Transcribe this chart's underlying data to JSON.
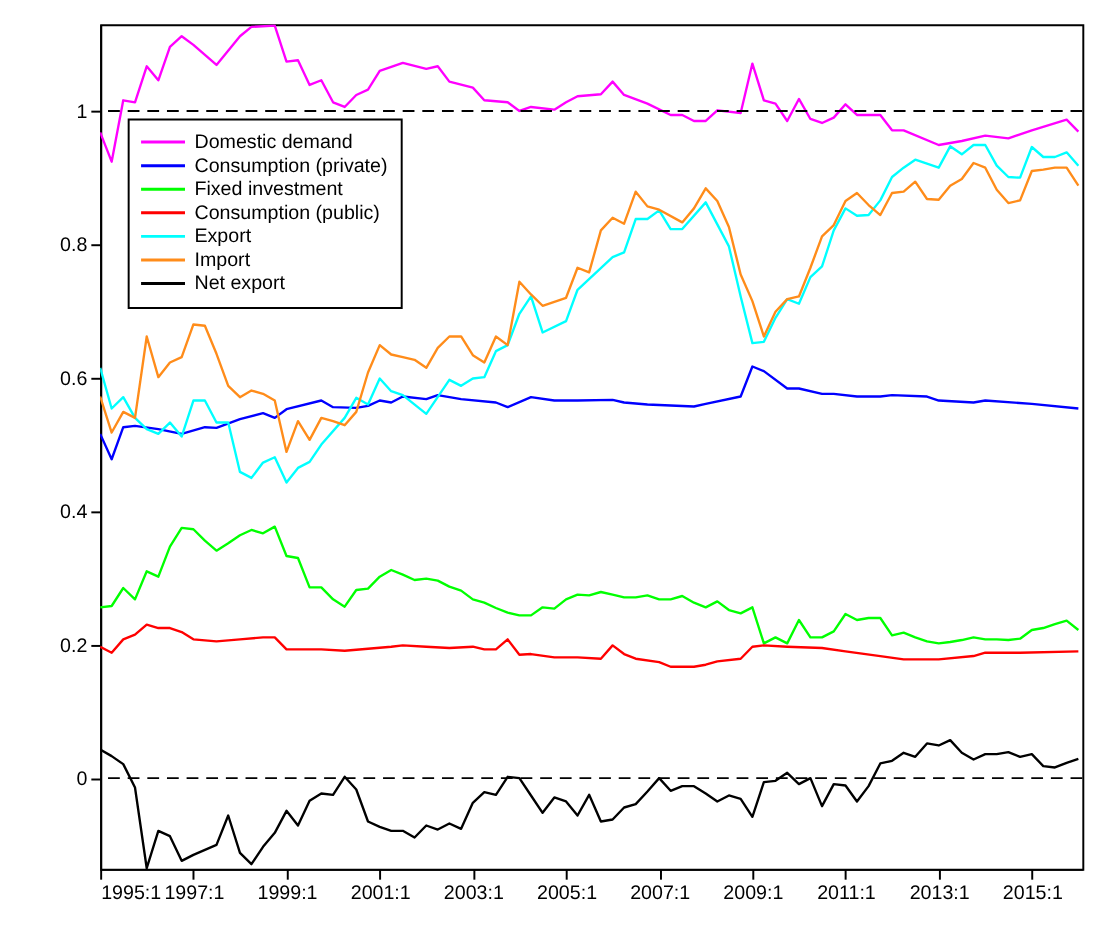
{
  "chart_data": {
    "type": "line",
    "xlim": [
      "1995-01",
      "2016-02"
    ],
    "ylim": [
      -0.136,
      1.13
    ],
    "xticks": [
      {
        "value": "1995-01",
        "label": "1995:1"
      },
      {
        "value": "1997-01",
        "label": "1997:1"
      },
      {
        "value": "1999-01",
        "label": "1999:1"
      },
      {
        "value": "2001-01",
        "label": "2001:1"
      },
      {
        "value": "2003-01",
        "label": "2003:1"
      },
      {
        "value": "2005-01",
        "label": "2005:1"
      },
      {
        "value": "2007-01",
        "label": "2007:1"
      },
      {
        "value": "2009-01",
        "label": "2009:1"
      },
      {
        "value": "2011-01",
        "label": "2011:1"
      },
      {
        "value": "2013-01",
        "label": "2013:1"
      },
      {
        "value": "2015-01",
        "label": "2015:1"
      }
    ],
    "yticks": [
      0,
      0.2,
      0.4,
      0.6,
      0.8,
      1
    ],
    "grid": false,
    "legend": "top left",
    "line_style": "solid",
    "ref_lines": [
      {
        "axis": "y",
        "value": 1,
        "color": "#000000",
        "line_style": "dashed"
      },
      {
        "axis": "y",
        "value": 0,
        "color": "#000000",
        "line_style": "dashed"
      }
    ],
    "series": [
      {
        "name": "Domestic demand",
        "color": "#ff00ff",
        "x": [
          "1995-01",
          "1995-04",
          "1995-07",
          "1995-10",
          "1996-01",
          "1996-04",
          "1996-07",
          "1996-10",
          "1997-01",
          "1997-07",
          "1998-01",
          "1998-04",
          "1998-10",
          "1999-01",
          "1999-04",
          "1999-07",
          "1999-10",
          "2000-01",
          "2000-04",
          "2000-07",
          "2000-10",
          "2001-01",
          "2001-07",
          "2002-01",
          "2002-04",
          "2002-07",
          "2003-01",
          "2003-04",
          "2003-10",
          "2004-01",
          "2004-04",
          "2004-10",
          "2005-01",
          "2005-04",
          "2005-10",
          "2006-01",
          "2006-04",
          "2006-10",
          "2007-04",
          "2007-07",
          "2007-10",
          "2008-01",
          "2008-04",
          "2008-10",
          "2009-01",
          "2009-04",
          "2009-07",
          "2009-10",
          "2010-01",
          "2010-04",
          "2010-07",
          "2010-10",
          "2011-01",
          "2011-04",
          "2011-10",
          "2012-01",
          "2012-04",
          "2013-01",
          "2013-07",
          "2014-01",
          "2014-07",
          "2015-01",
          "2015-10",
          "2016-01"
        ],
        "values": [
          0.968,
          0.924,
          1.016,
          1.013,
          1.067,
          1.046,
          1.096,
          1.112,
          1.099,
          1.069,
          1.112,
          1.126,
          1.128,
          1.074,
          1.076,
          1.039,
          1.046,
          1.013,
          1.006,
          1.024,
          1.032,
          1.06,
          1.072,
          1.063,
          1.067,
          1.044,
          1.035,
          1.016,
          1.013,
          1.0,
          1.006,
          1.002,
          1.013,
          1.022,
          1.025,
          1.044,
          1.024,
          1.011,
          0.994,
          0.994,
          0.985,
          0.985,
          1.001,
          0.997,
          1.071,
          1.016,
          1.011,
          0.985,
          1.018,
          0.988,
          0.982,
          0.99,
          1.01,
          0.994,
          0.994,
          0.971,
          0.971,
          0.949,
          0.955,
          0.963,
          0.959,
          0.971,
          0.987,
          0.969
        ]
      },
      {
        "name": "Consumption (private)",
        "color": "#0000ff",
        "x": [
          "1995-01",
          "1995-04",
          "1995-07",
          "1995-10",
          "1996-04",
          "1996-10",
          "1997-04",
          "1997-07",
          "1998-01",
          "1998-07",
          "1998-10",
          "1999-01",
          "1999-10",
          "2000-01",
          "2000-07",
          "2000-10",
          "2001-01",
          "2001-04",
          "2001-07",
          "2002-01",
          "2002-04",
          "2002-10",
          "2003-07",
          "2003-10",
          "2004-04",
          "2004-10",
          "2005-04",
          "2006-01",
          "2006-04",
          "2006-10",
          "2007-10",
          "2008-01",
          "2008-10",
          "2009-01",
          "2009-04",
          "2009-10",
          "2010-01",
          "2010-07",
          "2010-10",
          "2011-04",
          "2011-10",
          "2012-01",
          "2012-10",
          "2013-01",
          "2013-10",
          "2014-01",
          "2015-01",
          "2016-01"
        ],
        "values": [
          0.516,
          0.478,
          0.526,
          0.528,
          0.523,
          0.516,
          0.526,
          0.525,
          0.538,
          0.547,
          0.54,
          0.553,
          0.566,
          0.556,
          0.555,
          0.558,
          0.566,
          0.563,
          0.572,
          0.568,
          0.574,
          0.568,
          0.563,
          0.556,
          0.571,
          0.566,
          0.566,
          0.567,
          0.563,
          0.56,
          0.557,
          0.561,
          0.572,
          0.617,
          0.61,
          0.584,
          0.584,
          0.576,
          0.576,
          0.572,
          0.572,
          0.574,
          0.572,
          0.566,
          0.563,
          0.566,
          0.561,
          0.554
        ]
      },
      {
        "name": "Fixed investment",
        "color": "#00ff00",
        "x": [
          "1995-01",
          "1995-04",
          "1995-07",
          "1995-10",
          "1996-01",
          "1996-04",
          "1996-07",
          "1996-10",
          "1997-01",
          "1997-04",
          "1997-07",
          "1997-10",
          "1998-01",
          "1998-04",
          "1998-07",
          "1998-10",
          "1999-01",
          "1999-04",
          "1999-07",
          "1999-10",
          "2000-01",
          "2000-04",
          "2000-07",
          "2000-10",
          "2001-01",
          "2001-04",
          "2001-07",
          "2001-10",
          "2002-01",
          "2002-04",
          "2002-07",
          "2002-10",
          "2003-01",
          "2003-04",
          "2003-07",
          "2003-10",
          "2004-01",
          "2004-04",
          "2004-07",
          "2004-10",
          "2005-01",
          "2005-04",
          "2005-07",
          "2005-10",
          "2006-01",
          "2006-04",
          "2006-07",
          "2006-10",
          "2007-01",
          "2007-04",
          "2007-07",
          "2007-10",
          "2008-01",
          "2008-04",
          "2008-07",
          "2008-10",
          "2009-01",
          "2009-04",
          "2009-07",
          "2009-10",
          "2010-01",
          "2010-04",
          "2010-07",
          "2010-10",
          "2011-01",
          "2011-04",
          "2011-07",
          "2011-10",
          "2012-01",
          "2012-04",
          "2012-07",
          "2012-10",
          "2013-01",
          "2013-04",
          "2013-07",
          "2013-10",
          "2014-01",
          "2014-04",
          "2014-07",
          "2014-10",
          "2015-01",
          "2015-04",
          "2015-07",
          "2015-10",
          "2016-01"
        ],
        "values": [
          0.256,
          0.258,
          0.285,
          0.268,
          0.31,
          0.302,
          0.347,
          0.375,
          0.373,
          0.356,
          0.341,
          0.352,
          0.364,
          0.372,
          0.367,
          0.377,
          0.333,
          0.33,
          0.286,
          0.286,
          0.268,
          0.257,
          0.282,
          0.284,
          0.302,
          0.312,
          0.305,
          0.297,
          0.299,
          0.296,
          0.287,
          0.281,
          0.268,
          0.263,
          0.255,
          0.248,
          0.244,
          0.244,
          0.256,
          0.254,
          0.268,
          0.275,
          0.274,
          0.279,
          0.275,
          0.271,
          0.271,
          0.274,
          0.268,
          0.268,
          0.273,
          0.263,
          0.256,
          0.265,
          0.252,
          0.247,
          0.256,
          0.202,
          0.211,
          0.202,
          0.237,
          0.211,
          0.211,
          0.22,
          0.246,
          0.237,
          0.24,
          0.24,
          0.214,
          0.218,
          0.211,
          0.205,
          0.202,
          0.204,
          0.207,
          0.211,
          0.208,
          0.208,
          0.207,
          0.209,
          0.222,
          0.225,
          0.231,
          0.236,
          0.222
        ]
      },
      {
        "name": "Consumption (public)",
        "color": "#ff0000",
        "x": [
          "1995-01",
          "1995-04",
          "1995-07",
          "1995-10",
          "1996-01",
          "1996-04",
          "1996-07",
          "1996-10",
          "1997-01",
          "1997-07",
          "1998-01",
          "1998-07",
          "1998-10",
          "1999-01",
          "1999-10",
          "2000-04",
          "2000-10",
          "2001-04",
          "2001-07",
          "2002-01",
          "2002-07",
          "2003-01",
          "2003-04",
          "2003-07",
          "2003-10",
          "2004-01",
          "2004-04",
          "2004-10",
          "2005-01",
          "2005-04",
          "2005-10",
          "2006-01",
          "2006-04",
          "2006-07",
          "2007-01",
          "2007-04",
          "2007-10",
          "2008-01",
          "2008-04",
          "2008-10",
          "2009-01",
          "2009-04",
          "2009-10",
          "2010-07",
          "2011-01",
          "2011-10",
          "2012-04",
          "2013-01",
          "2013-10",
          "2014-01",
          "2014-10",
          "2016-01"
        ],
        "values": [
          0.197,
          0.188,
          0.208,
          0.215,
          0.23,
          0.225,
          0.225,
          0.219,
          0.208,
          0.205,
          0.208,
          0.211,
          0.211,
          0.193,
          0.193,
          0.191,
          0.194,
          0.197,
          0.199,
          0.197,
          0.195,
          0.197,
          0.193,
          0.193,
          0.208,
          0.185,
          0.186,
          0.181,
          0.181,
          0.181,
          0.179,
          0.199,
          0.186,
          0.179,
          0.174,
          0.167,
          0.167,
          0.17,
          0.175,
          0.179,
          0.197,
          0.199,
          0.197,
          0.195,
          0.19,
          0.183,
          0.178,
          0.178,
          0.183,
          0.188,
          0.188,
          0.19
        ]
      },
      {
        "name": "Export",
        "color": "#00ffff",
        "x": [
          "1995-01",
          "1995-04",
          "1995-07",
          "1995-10",
          "1996-01",
          "1996-04",
          "1996-07",
          "1996-10",
          "1997-01",
          "1997-04",
          "1997-07",
          "1997-10",
          "1998-01",
          "1998-04",
          "1998-07",
          "1998-10",
          "1999-01",
          "1999-04",
          "1999-07",
          "1999-10",
          "2000-04",
          "2000-07",
          "2000-10",
          "2001-01",
          "2001-04",
          "2001-07",
          "2002-01",
          "2002-07",
          "2002-10",
          "2003-01",
          "2003-04",
          "2003-07",
          "2003-10",
          "2004-01",
          "2004-04",
          "2004-07",
          "2005-01",
          "2005-04",
          "2006-01",
          "2006-04",
          "2006-07",
          "2006-10",
          "2007-01",
          "2007-04",
          "2007-07",
          "2008-01",
          "2008-04",
          "2008-07",
          "2008-10",
          "2009-01",
          "2009-04",
          "2009-07",
          "2009-10",
          "2010-01",
          "2010-04",
          "2010-07",
          "2010-10",
          "2011-01",
          "2011-04",
          "2011-07",
          "2011-10",
          "2012-01",
          "2012-04",
          "2012-07",
          "2013-01",
          "2013-04",
          "2013-07",
          "2013-10",
          "2014-01",
          "2014-04",
          "2014-07",
          "2014-10",
          "2015-01",
          "2015-04",
          "2015-07",
          "2015-10",
          "2016-01"
        ],
        "values": [
          0.615,
          0.554,
          0.571,
          0.54,
          0.523,
          0.516,
          0.533,
          0.512,
          0.566,
          0.566,
          0.533,
          0.533,
          0.459,
          0.45,
          0.473,
          0.481,
          0.443,
          0.465,
          0.474,
          0.5,
          0.54,
          0.57,
          0.56,
          0.599,
          0.58,
          0.574,
          0.546,
          0.597,
          0.588,
          0.599,
          0.601,
          0.64,
          0.649,
          0.696,
          0.722,
          0.668,
          0.685,
          0.732,
          0.781,
          0.788,
          0.838,
          0.838,
          0.851,
          0.823,
          0.823,
          0.863,
          0.83,
          0.797,
          0.722,
          0.652,
          0.654,
          0.69,
          0.718,
          0.711,
          0.751,
          0.767,
          0.821,
          0.854,
          0.843,
          0.844,
          0.866,
          0.901,
          0.915,
          0.927,
          0.915,
          0.947,
          0.935,
          0.949,
          0.949,
          0.918,
          0.901,
          0.9,
          0.946,
          0.931,
          0.931,
          0.938,
          0.918
        ]
      },
      {
        "name": "Import",
        "color": "#ff8c1a",
        "x": [
          "1995-01",
          "1995-04",
          "1995-07",
          "1995-10",
          "1996-01",
          "1996-04",
          "1996-07",
          "1996-10",
          "1997-01",
          "1997-04",
          "1997-07",
          "1997-10",
          "1998-01",
          "1998-04",
          "1998-07",
          "1998-10",
          "1999-01",
          "1999-04",
          "1999-07",
          "1999-10",
          "2000-01",
          "2000-04",
          "2000-07",
          "2000-10",
          "2001-01",
          "2001-04",
          "2001-07",
          "2001-10",
          "2002-01",
          "2002-04",
          "2002-07",
          "2002-10",
          "2003-01",
          "2003-04",
          "2003-07",
          "2003-10",
          "2004-01",
          "2004-04",
          "2004-07",
          "2005-01",
          "2005-04",
          "2005-07",
          "2005-10",
          "2006-01",
          "2006-04",
          "2006-07",
          "2006-10",
          "2007-01",
          "2007-07",
          "2007-10",
          "2008-01",
          "2008-04",
          "2008-07",
          "2008-10",
          "2009-01",
          "2009-04",
          "2009-07",
          "2009-10",
          "2010-01",
          "2010-04",
          "2010-07",
          "2010-10",
          "2011-01",
          "2011-04",
          "2011-07",
          "2011-10",
          "2012-01",
          "2012-04",
          "2012-07",
          "2012-10",
          "2013-01",
          "2013-04",
          "2013-07",
          "2013-10",
          "2014-01",
          "2014-04",
          "2014-07",
          "2014-10",
          "2015-01",
          "2015-04",
          "2015-07",
          "2015-10",
          "2016-01"
        ],
        "values": [
          0.572,
          0.518,
          0.549,
          0.54,
          0.662,
          0.601,
          0.623,
          0.631,
          0.68,
          0.678,
          0.636,
          0.588,
          0.571,
          0.581,
          0.576,
          0.566,
          0.489,
          0.535,
          0.507,
          0.54,
          0.535,
          0.529,
          0.549,
          0.608,
          0.649,
          0.635,
          0.631,
          0.627,
          0.615,
          0.645,
          0.662,
          0.662,
          0.634,
          0.623,
          0.662,
          0.649,
          0.744,
          0.725,
          0.708,
          0.72,
          0.765,
          0.758,
          0.821,
          0.84,
          0.831,
          0.879,
          0.857,
          0.852,
          0.833,
          0.854,
          0.884,
          0.865,
          0.826,
          0.755,
          0.715,
          0.662,
          0.699,
          0.718,
          0.722,
          0.765,
          0.812,
          0.829,
          0.865,
          0.877,
          0.859,
          0.844,
          0.877,
          0.879,
          0.894,
          0.868,
          0.867,
          0.888,
          0.898,
          0.922,
          0.915,
          0.882,
          0.862,
          0.866,
          0.91,
          0.912,
          0.915,
          0.915,
          0.888
        ]
      },
      {
        "name": "Net export",
        "color": "#000000",
        "x": [
          "1995-01",
          "1995-04",
          "1995-07",
          "1995-10",
          "1996-01",
          "1996-04",
          "1996-07",
          "1996-10",
          "1997-01",
          "1997-07",
          "1997-10",
          "1998-01",
          "1998-04",
          "1998-07",
          "1998-10",
          "1999-01",
          "1999-04",
          "1999-07",
          "1999-10",
          "2000-01",
          "2000-04",
          "2000-07",
          "2000-10",
          "2001-01",
          "2001-04",
          "2001-07",
          "2001-10",
          "2002-01",
          "2002-04",
          "2002-07",
          "2002-10",
          "2003-01",
          "2003-04",
          "2003-07",
          "2003-10",
          "2004-01",
          "2004-04",
          "2004-07",
          "2004-10",
          "2005-01",
          "2005-04",
          "2005-07",
          "2005-10",
          "2006-01",
          "2006-04",
          "2006-07",
          "2006-10",
          "2007-01",
          "2007-04",
          "2007-07",
          "2007-10",
          "2008-01",
          "2008-04",
          "2008-07",
          "2008-10",
          "2009-01",
          "2009-04",
          "2009-07",
          "2009-10",
          "2010-01",
          "2010-04",
          "2010-07",
          "2010-10",
          "2011-01",
          "2011-04",
          "2011-07",
          "2011-10",
          "2012-01",
          "2012-04",
          "2012-07",
          "2012-10",
          "2013-01",
          "2013-04",
          "2013-07",
          "2013-10",
          "2014-01",
          "2014-04",
          "2014-07",
          "2014-10",
          "2015-01",
          "2015-04",
          "2015-07",
          "2015-10",
          "2016-01"
        ],
        "values": [
          0.043,
          0.033,
          0.021,
          -0.014,
          -0.135,
          -0.079,
          -0.087,
          -0.124,
          -0.115,
          -0.1,
          -0.056,
          -0.112,
          -0.129,
          -0.103,
          -0.082,
          -0.049,
          -0.071,
          -0.034,
          -0.023,
          -0.025,
          0.002,
          -0.017,
          -0.065,
          -0.073,
          -0.079,
          -0.079,
          -0.089,
          -0.071,
          -0.077,
          -0.068,
          -0.076,
          -0.037,
          -0.021,
          -0.025,
          0.002,
          0,
          -0.026,
          -0.052,
          -0.029,
          -0.035,
          -0.056,
          -0.025,
          -0.065,
          -0.062,
          -0.044,
          -0.039,
          -0.02,
          0,
          -0.019,
          -0.012,
          -0.012,
          -0.023,
          -0.035,
          -0.026,
          -0.031,
          -0.058,
          -0.006,
          -0.004,
          0.008,
          -0.009,
          0,
          -0.042,
          -0.009,
          -0.011,
          -0.035,
          -0.012,
          0.022,
          0.026,
          0.038,
          0.032,
          0.052,
          0.049,
          0.057,
          0.038,
          0.028,
          0.036,
          0.036,
          0.039,
          0.032,
          0.036,
          0.018,
          0.016,
          0.023,
          0.029
        ]
      }
    ]
  }
}
